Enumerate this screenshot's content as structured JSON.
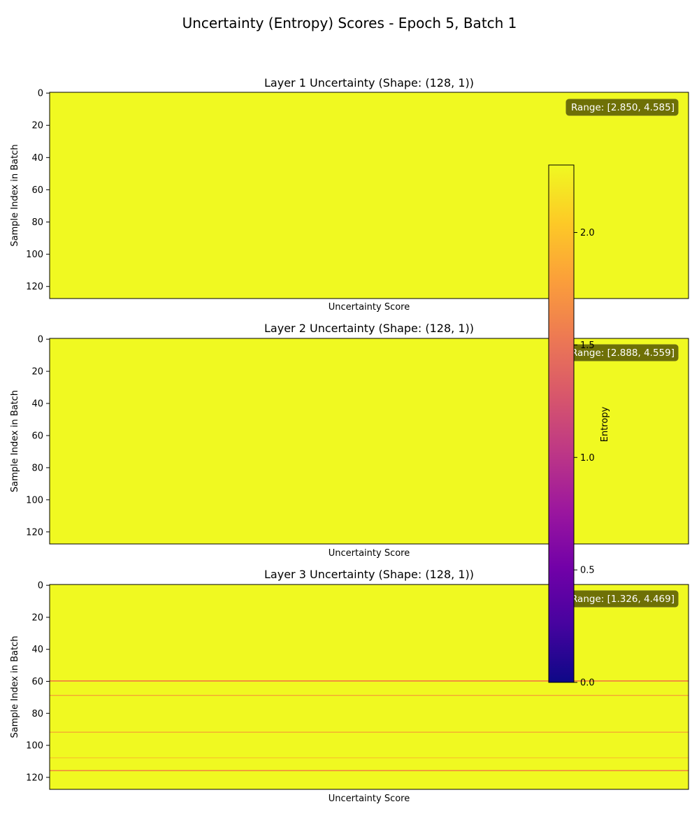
{
  "figure_title": "Uncertainty (Entropy) Scores - Epoch 5, Batch 1",
  "chart_data": [
    {
      "type": "heatmap",
      "title": "Layer 1 Uncertainty (Shape: (128, 1))",
      "xlabel": "Uncertainty Score",
      "ylabel": "Sample Index in Batch",
      "yticks": [
        0,
        20,
        40,
        60,
        80,
        100,
        120
      ],
      "rows": 128,
      "cols": 1,
      "range_label": "Range: [2.850, 4.585]",
      "min": 2.85,
      "max": 4.585,
      "dips": []
    },
    {
      "type": "heatmap",
      "title": "Layer 2 Uncertainty (Shape: (128, 1))",
      "xlabel": "Uncertainty Score",
      "ylabel": "Sample Index in Batch",
      "yticks": [
        0,
        20,
        40,
        60,
        80,
        100,
        120
      ],
      "rows": 128,
      "cols": 1,
      "range_label": "Range: [2.888, 4.559]",
      "min": 2.888,
      "max": 4.559,
      "dips": []
    },
    {
      "type": "heatmap",
      "title": "Layer 3 Uncertainty (Shape: (128, 1))",
      "xlabel": "Uncertainty Score",
      "ylabel": "Sample Index in Batch",
      "yticks": [
        0,
        20,
        40,
        60,
        80,
        100,
        120
      ],
      "rows": 128,
      "cols": 1,
      "range_label": "Range: [1.326, 4.469]",
      "min": 1.326,
      "max": 4.469,
      "dips": [
        {
          "index": 60,
          "color": "#f2514f"
        },
        {
          "index": 69,
          "color": "#f59f35"
        },
        {
          "index": 92,
          "color": "#f5a432"
        },
        {
          "index": 108,
          "color": "#f7c52a"
        },
        {
          "index": 116,
          "color": "#f26a48"
        }
      ]
    }
  ],
  "colorbar": {
    "label": "Entropy",
    "ticks": [
      "0.0",
      "0.5",
      "1.0",
      "1.5",
      "2.0"
    ],
    "min": 0.0,
    "max": 2.3,
    "colormap": "plasma",
    "colors": [
      "#0d0887",
      "#46039f",
      "#7201a8",
      "#9c179e",
      "#bd3786",
      "#d8576b",
      "#ed7953",
      "#fb9f3a",
      "#fdca26",
      "#f0f921"
    ]
  },
  "cell_color": "#f0f921"
}
